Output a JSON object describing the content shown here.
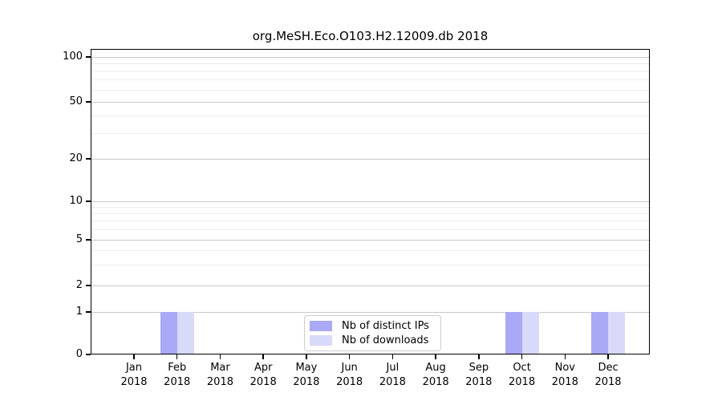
{
  "chart_data": {
    "type": "bar",
    "title": "org.MeSH.Eco.O103.H2.12009.db 2018",
    "x_tick_labels": [
      [
        "Jan",
        "2018"
      ],
      [
        "Feb",
        "2018"
      ],
      [
        "Mar",
        "2018"
      ],
      [
        "Apr",
        "2018"
      ],
      [
        "May",
        "2018"
      ],
      [
        "Jun",
        "2018"
      ],
      [
        "Jul",
        "2018"
      ],
      [
        "Aug",
        "2018"
      ],
      [
        "Sep",
        "2018"
      ],
      [
        "Oct",
        "2018"
      ],
      [
        "Nov",
        "2018"
      ],
      [
        "Dec",
        "2018"
      ]
    ],
    "series": [
      {
        "name": "Nb of distinct IPs",
        "color": "#a9a9f5",
        "values": [
          0,
          1,
          0,
          0,
          0,
          0,
          0,
          0,
          0,
          1,
          0,
          1
        ]
      },
      {
        "name": "Nb of downloads",
        "color": "#d9d9fa",
        "values": [
          0,
          1,
          0,
          0,
          0,
          0,
          0,
          0,
          0,
          1,
          0,
          1
        ]
      }
    ],
    "y_axis": {
      "scale": "log-like with zero baseline",
      "ticks": [
        0,
        1,
        2,
        5,
        10,
        20,
        50,
        100
      ],
      "minor_gridlines": [
        3,
        4,
        6,
        7,
        8,
        9,
        30,
        40,
        60,
        70,
        80,
        90
      ],
      "range": [
        0,
        114
      ]
    },
    "legend": {
      "position": "bottom-center"
    },
    "grid": "horizontal",
    "colors": {
      "grid_major": "#c9c9c9",
      "grid_minor": "#ececec",
      "spine": "#000000",
      "background": "#ffffff"
    }
  }
}
